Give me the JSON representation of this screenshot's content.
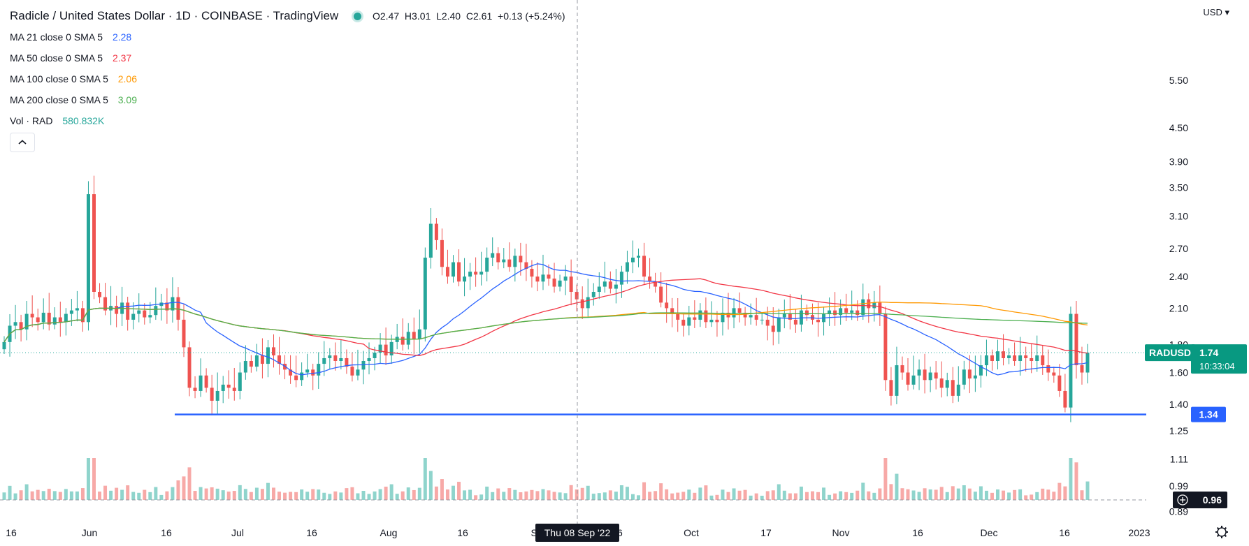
{
  "header": {
    "title": "Radicle / United States Dollar · 1D · COINBASE · TradingView",
    "ohlc": {
      "o": "O2.47",
      "h": "H3.01",
      "l": "L2.40",
      "c": "C2.61",
      "change": "+0.13 (+5.24%)"
    }
  },
  "indicators": [
    {
      "label": "MA 21 close 0 SMA 5",
      "value": "2.28",
      "color": "#2962ff"
    },
    {
      "label": "MA 50 close 0 SMA 5",
      "value": "2.37",
      "color": "#f23645"
    },
    {
      "label": "MA 100 close 0 SMA 5",
      "value": "2.06",
      "color": "#ff9800"
    },
    {
      "label": "MA 200 close 0 SMA 5",
      "value": "3.09",
      "color": "#4caf50"
    },
    {
      "label": "Vol · RAD",
      "value": "580.832K",
      "color": "#26a69a"
    }
  ],
  "currency": "USD",
  "symbol_tag": {
    "name": "RADUSD",
    "price": "1.74",
    "countdown": "10:33:04"
  },
  "support_tag": "1.34",
  "crosshair_price": "0.96",
  "crosshair_date": "Thu 08 Sep '22",
  "colors": {
    "up": "#26a69a",
    "down": "#ef5350",
    "support": "#2962ff",
    "vol_up": "#8fd4cc",
    "vol_down": "#f7a9a7"
  },
  "chart_data": {
    "type": "candlestick",
    "scale": "log",
    "ylim": [
      0.87,
      6.1
    ],
    "y_ticks": [
      "5.50",
      "4.50",
      "3.90",
      "3.50",
      "3.10",
      "2.70",
      "2.40",
      "2.10",
      "1.80",
      "1.60",
      "1.40",
      "1.25",
      "1.11",
      "0.99",
      "0.89"
    ],
    "x_ticks": [
      "16",
      "Jun",
      "16",
      "Jul",
      "16",
      "Aug",
      "16",
      "Sep",
      "16",
      "Oct",
      "17",
      "Nov",
      "16",
      "Dec",
      "16",
      "2023"
    ],
    "x_range": [
      "2022-05-16",
      "2023-01-10"
    ],
    "support_level": 1.34,
    "last_price": 1.74,
    "candles_close": [
      1.82,
      1.95,
      1.98,
      1.92,
      2.05,
      2.02,
      1.98,
      2.06,
      1.96,
      2.02,
      1.98,
      2.05,
      2.08,
      2.1,
      1.98,
      3.4,
      2.25,
      2.2,
      2.08,
      2.12,
      2.05,
      2.15,
      2.0,
      2.05,
      2.08,
      2.02,
      2.04,
      2.12,
      2.15,
      2.08,
      2.2,
      2.0,
      1.78,
      1.5,
      1.48,
      1.58,
      1.5,
      1.42,
      1.48,
      1.52,
      1.5,
      1.48,
      1.6,
      1.68,
      1.64,
      1.72,
      1.66,
      1.78,
      1.72,
      1.66,
      1.62,
      1.58,
      1.55,
      1.6,
      1.62,
      1.58,
      1.66,
      1.7,
      1.72,
      1.68,
      1.7,
      1.64,
      1.58,
      1.62,
      1.68,
      1.7,
      1.74,
      1.8,
      1.72,
      1.82,
      1.86,
      1.8,
      1.9,
      1.84,
      1.92,
      2.6,
      3.0,
      2.8,
      2.5,
      2.4,
      2.55,
      2.35,
      2.4,
      2.45,
      2.42,
      2.45,
      2.6,
      2.65,
      2.55,
      2.58,
      2.5,
      2.62,
      2.55,
      2.48,
      2.4,
      2.35,
      2.42,
      2.38,
      2.3,
      2.36,
      2.4,
      2.25,
      2.18,
      2.1,
      2.2,
      2.25,
      2.3,
      2.35,
      2.28,
      2.32,
      2.45,
      2.55,
      2.6,
      2.62,
      2.4,
      2.35,
      2.3,
      2.15,
      2.1,
      2.05,
      2.0,
      1.95,
      2.02,
      2.0,
      2.08,
      1.98,
      2.0,
      1.98,
      2.06,
      2.02,
      2.1,
      2.06,
      2.02,
      2.04,
      2.0,
      2.0,
      1.95,
      1.9,
      2.02,
      2.05,
      2.0,
      1.96,
      2.08,
      2.04,
      2.0,
      1.98,
      2.05,
      2.08,
      2.04,
      2.1,
      2.06,
      2.08,
      2.04,
      2.18,
      2.1,
      2.15,
      2.05,
      1.55,
      1.45,
      1.65,
      1.6,
      1.52,
      1.58,
      1.62,
      1.55,
      1.6,
      1.56,
      1.5,
      1.55,
      1.45,
      1.52,
      1.62,
      1.56,
      1.58,
      1.65,
      1.72,
      1.68,
      1.75,
      1.7,
      1.72,
      1.68,
      1.72,
      1.7,
      1.68,
      1.72,
      1.65,
      1.6,
      1.58,
      1.48,
      1.38,
      2.05,
      1.65,
      1.6,
      1.74
    ]
  }
}
